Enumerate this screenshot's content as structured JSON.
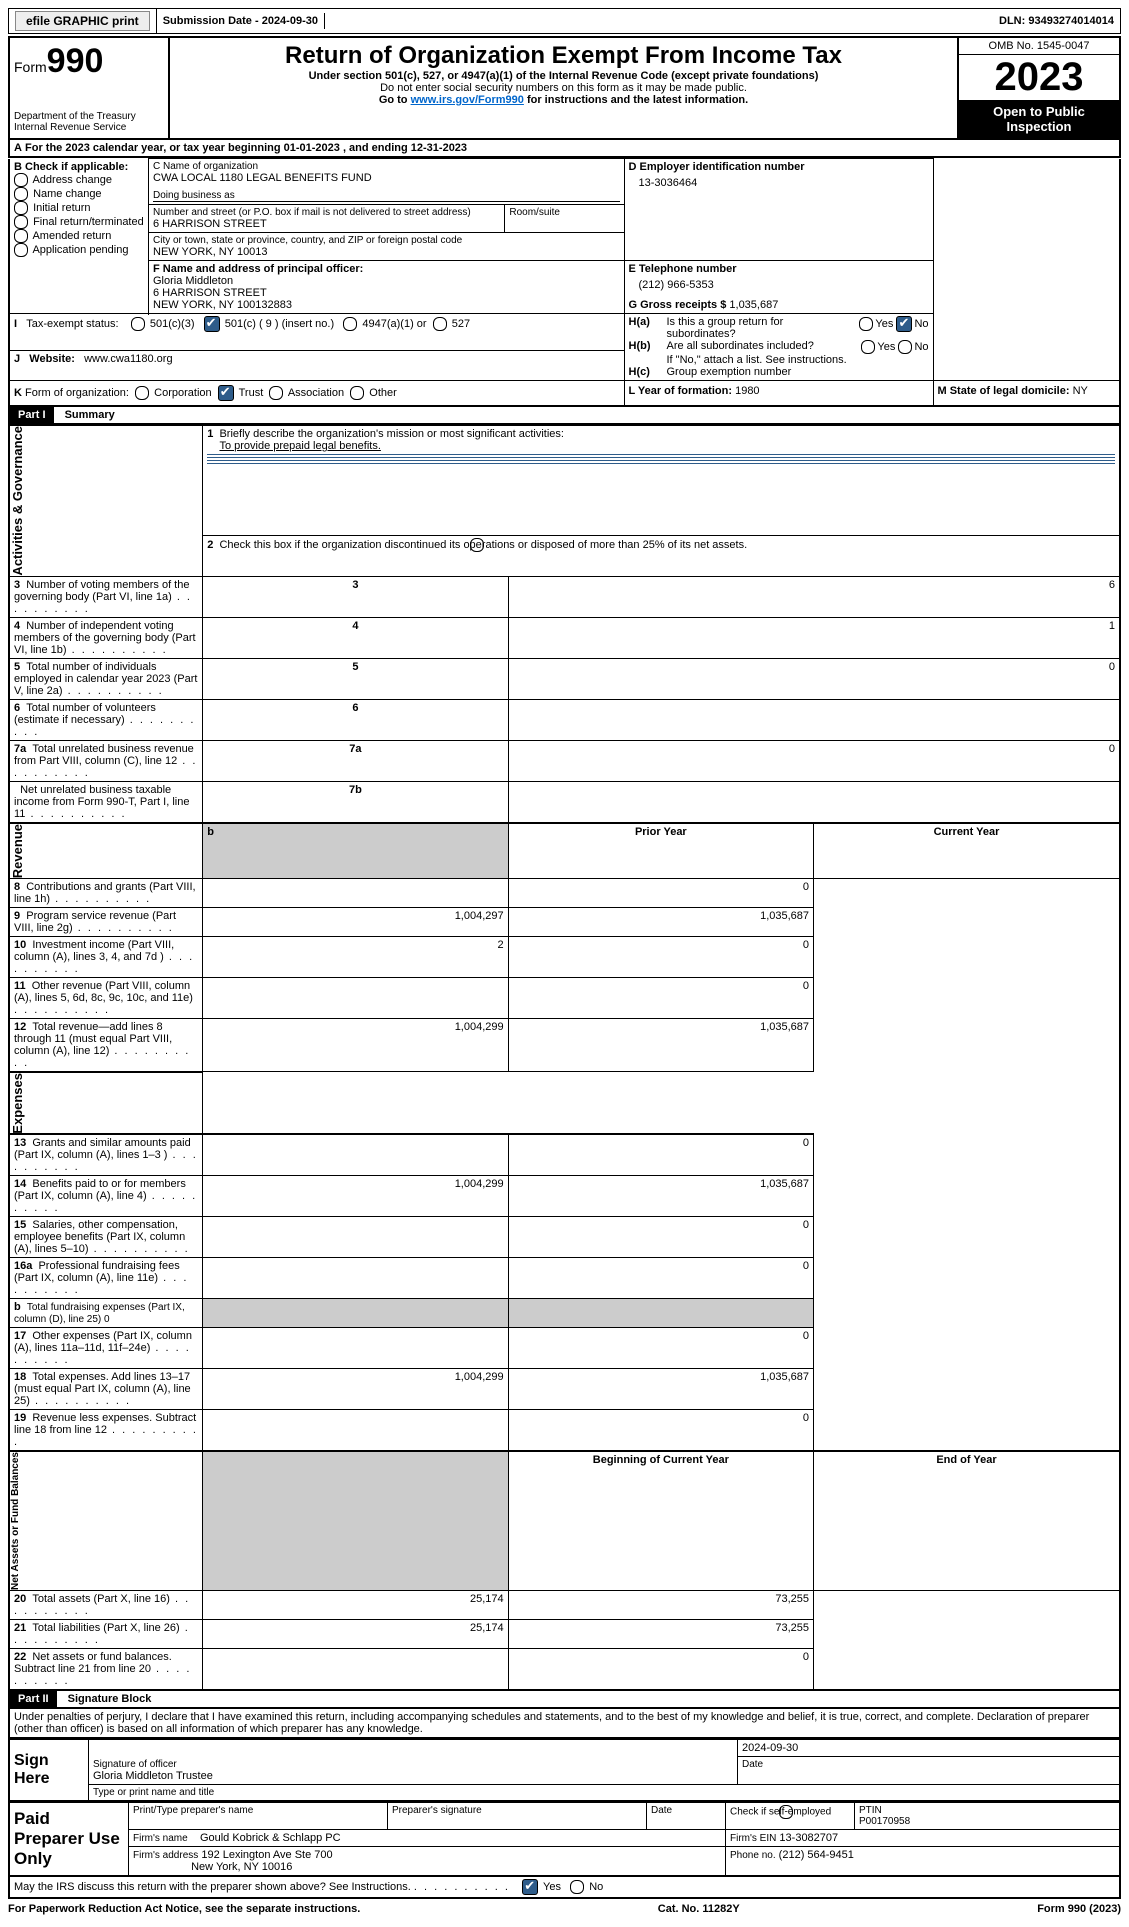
{
  "topbar": {
    "efile": "efile GRAPHIC print",
    "submission_label": "Submission Date - 2024-09-30",
    "dln": "DLN: 93493274014014"
  },
  "header": {
    "form_label": "Form",
    "form_number": "990",
    "dept": "Department of the Treasury Internal Revenue Service",
    "title": "Return of Organization Exempt From Income Tax",
    "subtitle": "Under section 501(c), 527, or 4947(a)(1) of the Internal Revenue Code (except private foundations)",
    "ssn_note": "Do not enter social security numbers on this form as it may be made public.",
    "goto_pre": "Go to ",
    "goto_link": "www.irs.gov/Form990",
    "goto_post": " for instructions and the latest information.",
    "omb": "OMB No. 1545-0047",
    "year": "2023",
    "public": "Open to Public Inspection"
  },
  "line_a": "For the 2023 calendar year, or tax year beginning 01-01-2023    , and ending 12-31-2023",
  "box_b": {
    "title": "B Check if applicable:",
    "opts": [
      "Address change",
      "Name change",
      "Initial return",
      "Final return/terminated",
      "Amended return",
      "Application pending"
    ]
  },
  "box_c": {
    "name_label": "C Name of organization",
    "name": "CWA LOCAL 1180 LEGAL BENEFITS FUND",
    "dba_label": "Doing business as",
    "dba": "",
    "addr_label": "Number and street (or P.O. box if mail is not delivered to street address)",
    "addr": "6 HARRISON STREET",
    "room_label": "Room/suite",
    "city_label": "City or town, state or province, country, and ZIP or foreign postal code",
    "city": "NEW YORK, NY  10013"
  },
  "box_d": {
    "label": "D Employer identification number",
    "value": "13-3036464"
  },
  "box_e": {
    "label": "E Telephone number",
    "value": "(212) 966-5353"
  },
  "box_g": {
    "label": "G Gross receipts $",
    "value": "1,035,687"
  },
  "box_f": {
    "label": "F  Name and address of principal officer:",
    "name": "Gloria Middleton",
    "addr1": "6 HARRISON STREET",
    "addr2": "NEW YORK, NY  100132883"
  },
  "box_h": {
    "a": "Is this a group return for subordinates?",
    "b": "Are all subordinates included?",
    "note": "If \"No,\" attach a list. See instructions.",
    "c": "Group exemption number",
    "ha_pre": "H(a)",
    "hb_pre": "H(b)",
    "hc_pre": "H(c)",
    "yes": "Yes",
    "no": "No"
  },
  "line_i": {
    "label": "Tax-exempt status:",
    "o1": "501(c)(3)",
    "o2": "501(c) ( 9 ) (insert no.)",
    "o3": "4947(a)(1) or",
    "o4": "527"
  },
  "line_j": {
    "label": "Website:",
    "value": "www.cwa1180.org"
  },
  "line_k": {
    "label": "Form of organization:",
    "o1": "Corporation",
    "o2": "Trust",
    "o3": "Association",
    "o4": "Other"
  },
  "line_l": {
    "label": "L Year of formation:",
    "value": "1980"
  },
  "line_m": {
    "label": "M State of legal domicile:",
    "value": "NY"
  },
  "part1": {
    "hdr": "Part I",
    "title": "Summary"
  },
  "summary": {
    "q1": "Briefly describe the organization's mission or most significant activities:",
    "mission": "To provide prepaid legal benefits.",
    "q2": "Check this box         if the organization discontinued its operations or disposed of more than 25% of its net assets.",
    "rows_gov": [
      {
        "n": "3",
        "t": "Number of voting members of the governing body (Part VI, line 1a)",
        "box": "3",
        "v": "6"
      },
      {
        "n": "4",
        "t": "Number of independent voting members of the governing body (Part VI, line 1b)",
        "box": "4",
        "v": "1"
      },
      {
        "n": "5",
        "t": "Total number of individuals employed in calendar year 2023 (Part V, line 2a)",
        "box": "5",
        "v": "0"
      },
      {
        "n": "6",
        "t": "Total number of volunteers (estimate if necessary)",
        "box": "6",
        "v": ""
      },
      {
        "n": "7a",
        "t": "Total unrelated business revenue from Part VIII, column (C), line 12",
        "box": "7a",
        "v": "0"
      },
      {
        "n": "",
        "t": "Net unrelated business taxable income from Form 990-T, Part I, line 11",
        "box": "7b",
        "v": ""
      }
    ],
    "col_prior": "Prior Year",
    "col_curr": "Current Year",
    "rows_rev": [
      {
        "n": "8",
        "t": "Contributions and grants (Part VIII, line 1h)",
        "p": "",
        "c": "0"
      },
      {
        "n": "9",
        "t": "Program service revenue (Part VIII, line 2g)",
        "p": "1,004,297",
        "c": "1,035,687"
      },
      {
        "n": "10",
        "t": "Investment income (Part VIII, column (A), lines 3, 4, and 7d )",
        "p": "2",
        "c": "0"
      },
      {
        "n": "11",
        "t": "Other revenue (Part VIII, column (A), lines 5, 6d, 8c, 9c, 10c, and 11e)",
        "p": "",
        "c": "0"
      },
      {
        "n": "12",
        "t": "Total revenue—add lines 8 through 11 (must equal Part VIII, column (A), line 12)",
        "p": "1,004,299",
        "c": "1,035,687"
      }
    ],
    "rows_exp": [
      {
        "n": "13",
        "t": "Grants and similar amounts paid (Part IX, column (A), lines 1–3 )",
        "p": "",
        "c": "0"
      },
      {
        "n": "14",
        "t": "Benefits paid to or for members (Part IX, column (A), line 4)",
        "p": "1,004,299",
        "c": "1,035,687"
      },
      {
        "n": "15",
        "t": "Salaries, other compensation, employee benefits (Part IX, column (A), lines 5–10)",
        "p": "",
        "c": "0"
      },
      {
        "n": "16a",
        "t": "Professional fundraising fees (Part IX, column (A), line 11e)",
        "p": "",
        "c": "0"
      },
      {
        "n": "b",
        "t": "Total fundraising expenses (Part IX, column (D), line 25) 0",
        "p": "shade",
        "c": "shade"
      },
      {
        "n": "17",
        "t": "Other expenses (Part IX, column (A), lines 11a–11d, 11f–24e)",
        "p": "",
        "c": "0"
      },
      {
        "n": "18",
        "t": "Total expenses. Add lines 13–17 (must equal Part IX, column (A), line 25)",
        "p": "1,004,299",
        "c": "1,035,687"
      },
      {
        "n": "19",
        "t": "Revenue less expenses. Subtract line 18 from line 12",
        "p": "",
        "c": "0"
      }
    ],
    "col_begin": "Beginning of Current Year",
    "col_end": "End of Year",
    "rows_net": [
      {
        "n": "20",
        "t": "Total assets (Part X, line 16)",
        "p": "25,174",
        "c": "73,255"
      },
      {
        "n": "21",
        "t": "Total liabilities (Part X, line 26)",
        "p": "25,174",
        "c": "73,255"
      },
      {
        "n": "22",
        "t": "Net assets or fund balances. Subtract line 21 from line 20",
        "p": "",
        "c": "0"
      }
    ],
    "side_gov": "Activities & Governance",
    "side_rev": "Revenue",
    "side_exp": "Expenses",
    "side_net": "Net Assets or Fund Balances"
  },
  "part2": {
    "hdr": "Part II",
    "title": "Signature Block"
  },
  "perjury": "Under penalties of perjury, I declare that I have examined this return, including accompanying schedules and statements, and to the best of my knowledge and belief, it is true, correct, and complete. Declaration of preparer (other than officer) is based on all information of which preparer has any knowledge.",
  "sign": {
    "here": "Sign Here",
    "sig_label": "Signature of officer",
    "date_label": "Date",
    "sig_date": "2024-09-30",
    "officer": "Gloria Middleton  Trustee",
    "type_label": "Type or print name and title"
  },
  "paid": {
    "title": "Paid Preparer Use Only",
    "name_label": "Print/Type preparer's name",
    "sig_label": "Preparer's signature",
    "date_label": "Date",
    "check_label": "Check          if self-employed",
    "ptin_label": "PTIN",
    "ptin": "P00170958",
    "firm_name_label": "Firm's name",
    "firm_name": "Gould Kobrick & Schlapp PC",
    "firm_ein_label": "Firm's EIN",
    "firm_ein": "13-3082707",
    "firm_addr_label": "Firm's address",
    "firm_addr1": "192 Lexington Ave Ste 700",
    "firm_addr2": "New York, NY  10016",
    "phone_label": "Phone no.",
    "phone": "(212) 564-9451"
  },
  "discuss": {
    "q": "May the IRS discuss this return with the preparer shown above? See Instructions.",
    "yes": "Yes",
    "no": "No"
  },
  "footer": {
    "left": "For Paperwork Reduction Act Notice, see the separate instructions.",
    "mid": "Cat. No. 11282Y",
    "right": "Form 990 (2023)"
  },
  "letters": {
    "A": "A",
    "B": "B",
    "I": "I",
    "J": "J",
    "K": "K",
    "b_bold": "b",
    "1": "1",
    "2": "2"
  }
}
